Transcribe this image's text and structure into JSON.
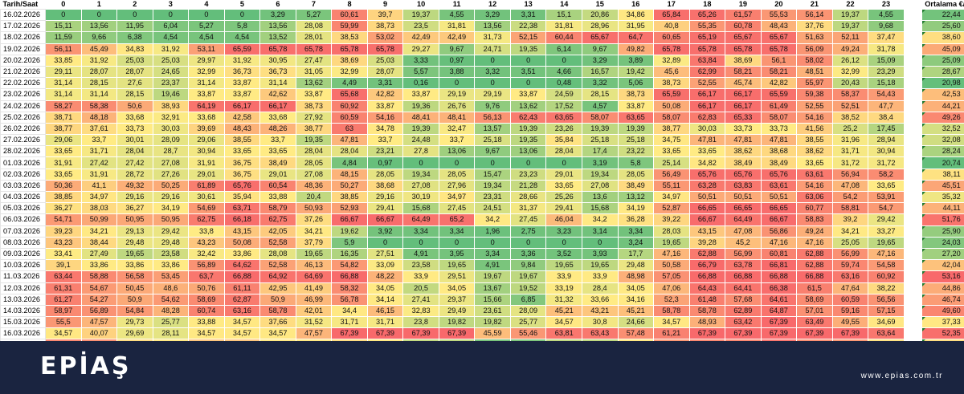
{
  "table": {
    "date_header": "Tarih/Saat",
    "hours": [
      "0",
      "1",
      "2",
      "3",
      "4",
      "5",
      "6",
      "7",
      "8",
      "9",
      "10",
      "11",
      "12",
      "13",
      "14",
      "15",
      "16",
      "17",
      "18",
      "19",
      "20",
      "21",
      "22",
      "23"
    ],
    "avg_header": "Ortalama €/MWh",
    "rows": [
      {
        "date": "16.02.2026",
        "values": [
          "0",
          "0",
          "0",
          "0",
          "0",
          "0",
          "3,29",
          "5,27",
          "60,61",
          "39,7",
          "19,37",
          "4,55",
          "3,29",
          "3,31",
          "15,1",
          "20,86",
          "34,86",
          "65,84",
          "65,26",
          "61,57",
          "55,53",
          "56,14",
          "19,37",
          "4,55"
        ],
        "avg": "22,44"
      },
      {
        "date": "17.02.2026",
        "values": [
          "15,11",
          "13,56",
          "11,95",
          "6,04",
          "5,27",
          "5,8",
          "13,56",
          "28,08",
          "59,99",
          "38,73",
          "23,5",
          "31,81",
          "13,56",
          "22,38",
          "31,81",
          "28,96",
          "31,95",
          "40,8",
          "55,35",
          "60,78",
          "48,43",
          "37,76",
          "19,37",
          "9,68"
        ],
        "avg": "25,60"
      },
      {
        "date": "18.02.2026",
        "values": [
          "11,59",
          "9,66",
          "6,38",
          "4,54",
          "4,54",
          "4,54",
          "13,52",
          "28,01",
          "38,53",
          "53,02",
          "42,49",
          "42,49",
          "31,73",
          "52,15",
          "60,44",
          "65,67",
          "64,7",
          "60,65",
          "65,19",
          "65,67",
          "65,67",
          "51,63",
          "52,11",
          "37,47"
        ],
        "avg": "38,60"
      },
      {
        "date": "19.02.2026",
        "values": [
          "56,11",
          "45,49",
          "34,83",
          "31,92",
          "53,11",
          "65,59",
          "65,78",
          "65,78",
          "65,78",
          "65,78",
          "29,27",
          "9,67",
          "24,71",
          "19,35",
          "6,14",
          "9,67",
          "49,82",
          "65,78",
          "65,78",
          "65,78",
          "65,78",
          "56,09",
          "49,24",
          "31,78"
        ],
        "avg": "45,09"
      },
      {
        "date": "20.02.2026",
        "values": [
          "33,85",
          "31,92",
          "25,03",
          "25,03",
          "29,97",
          "31,92",
          "30,95",
          "27,47",
          "38,69",
          "25,03",
          "3,33",
          "0,97",
          "0",
          "0",
          "0",
          "3,29",
          "3,89",
          "32,89",
          "63,84",
          "38,69",
          "56,1",
          "58,02",
          "26,12",
          "15,09"
        ],
        "avg": "25,09"
      },
      {
        "date": "21.02.2026",
        "values": [
          "29,11",
          "28,07",
          "28,07",
          "24,65",
          "32,99",
          "36,73",
          "36,73",
          "31,05",
          "32,99",
          "28,07",
          "5,57",
          "3,88",
          "3,32",
          "3,51",
          "4,66",
          "16,57",
          "19,42",
          "45,6",
          "62,99",
          "58,21",
          "58,21",
          "48,51",
          "32,99",
          "23,29"
        ],
        "avg": "28,67"
      },
      {
        "date": "22.02.2026",
        "values": [
          "31,14",
          "28,15",
          "27,6",
          "23,37",
          "31,14",
          "33,87",
          "31,14",
          "13,62",
          "4,49",
          "3,31",
          "0,16",
          "0",
          "0",
          "0",
          "0,48",
          "3,32",
          "5,06",
          "38,73",
          "52,55",
          "45,74",
          "42,82",
          "55,97",
          "20,43",
          "15,18"
        ],
        "avg": "20,98"
      },
      {
        "date": "23.02.2026",
        "values": [
          "31,14",
          "31,14",
          "28,15",
          "19,46",
          "33,87",
          "33,87",
          "42,62",
          "33,87",
          "65,68",
          "42,82",
          "33,87",
          "29,19",
          "29,19",
          "33,87",
          "24,59",
          "28,15",
          "38,73",
          "65,59",
          "66,17",
          "66,17",
          "65,59",
          "59,38",
          "58,37",
          "54,43"
        ],
        "avg": "42,53"
      },
      {
        "date": "24.02.2026",
        "values": [
          "58,27",
          "58,38",
          "50,6",
          "38,93",
          "64,19",
          "66,17",
          "66,17",
          "38,73",
          "60,92",
          "33,87",
          "19,36",
          "26,76",
          "9,76",
          "13,62",
          "17,52",
          "4,57",
          "33,87",
          "50,08",
          "66,17",
          "66,17",
          "61,49",
          "52,55",
          "52,51",
          "47,7"
        ],
        "avg": "44,21"
      },
      {
        "date": "25.02.2026",
        "values": [
          "38,71",
          "48,18",
          "33,68",
          "32,91",
          "33,68",
          "42,58",
          "33,68",
          "27,92",
          "60,59",
          "54,16",
          "48,41",
          "48,41",
          "56,13",
          "62,43",
          "63,65",
          "58,07",
          "63,65",
          "58,07",
          "62,83",
          "65,33",
          "58,07",
          "54,16",
          "38,52",
          "38,4"
        ],
        "avg": "49,26"
      },
      {
        "date": "26.02.2026",
        "values": [
          "38,77",
          "37,61",
          "33,73",
          "30,03",
          "39,69",
          "48,43",
          "48,26",
          "38,77",
          "63",
          "34,78",
          "19,39",
          "32,47",
          "13,57",
          "19,39",
          "23,26",
          "19,39",
          "19,39",
          "38,77",
          "30,03",
          "33,73",
          "33,73",
          "41,56",
          "25,2",
          "17,45"
        ],
        "avg": "32,52"
      },
      {
        "date": "27.02.2026",
        "values": [
          "29,06",
          "33,7",
          "30,01",
          "28,09",
          "29,06",
          "38,55",
          "33,7",
          "19,35",
          "47,81",
          "33,7",
          "24,48",
          "33,7",
          "25,18",
          "19,35",
          "35,84",
          "25,18",
          "25,18",
          "34,75",
          "47,81",
          "47,81",
          "47,81",
          "38,55",
          "31,96",
          "28,94"
        ],
        "avg": "32,08"
      },
      {
        "date": "28.02.2026",
        "values": [
          "33,65",
          "31,71",
          "28,04",
          "28,7",
          "30,94",
          "33,65",
          "33,65",
          "28,04",
          "28,04",
          "23,21",
          "27,8",
          "13,06",
          "9,67",
          "13,06",
          "28,04",
          "17,4",
          "23,22",
          "33,65",
          "33,65",
          "38,62",
          "38,68",
          "38,62",
          "31,71",
          "30,94"
        ],
        "avg": "28,24"
      },
      {
        "date": "01.03.2026",
        "values": [
          "31,91",
          "27,42",
          "27,42",
          "27,08",
          "31,91",
          "36,75",
          "38,49",
          "28,05",
          "4,84",
          "0,97",
          "0",
          "0",
          "0",
          "0",
          "0",
          "3,19",
          "5,8",
          "25,14",
          "34,82",
          "38,49",
          "38,49",
          "33,65",
          "31,72",
          "31,72"
        ],
        "avg": "20,74"
      },
      {
        "date": "02.03.2026",
        "values": [
          "33,65",
          "31,91",
          "28,72",
          "27,26",
          "29,01",
          "36,75",
          "29,01",
          "27,08",
          "48,15",
          "28,05",
          "19,34",
          "28,05",
          "15,47",
          "23,23",
          "29,01",
          "19,34",
          "28,05",
          "56,49",
          "65,76",
          "65,76",
          "65,76",
          "63,61",
          "56,94",
          "58,2"
        ],
        "avg": "38,11"
      },
      {
        "date": "03.03.2026",
        "values": [
          "50,36",
          "41,1",
          "49,32",
          "50,25",
          "61,89",
          "65,76",
          "60,54",
          "48,36",
          "50,27",
          "38,68",
          "27,08",
          "27,96",
          "19,34",
          "21,28",
          "33,65",
          "27,08",
          "38,49",
          "55,11",
          "63,28",
          "63,83",
          "63,61",
          "54,16",
          "47,08",
          "33,65"
        ],
        "avg": "45,51"
      },
      {
        "date": "04.03.2026",
        "values": [
          "38,85",
          "34,97",
          "29,16",
          "29,16",
          "30,61",
          "35,94",
          "33,88",
          "20,4",
          "38,85",
          "29,16",
          "30,19",
          "34,97",
          "23,31",
          "28,66",
          "25,26",
          "13,6",
          "13,12",
          "34,97",
          "50,51",
          "50,51",
          "50,51",
          "63,06",
          "54,2",
          "53,91"
        ],
        "avg": "35,32"
      },
      {
        "date": "05.03.2026",
        "values": [
          "36,27",
          "38,03",
          "36,27",
          "34,19",
          "54,69",
          "63,71",
          "58,79",
          "50,93",
          "52,93",
          "29,41",
          "15,68",
          "27,45",
          "24,51",
          "31,37",
          "29,41",
          "15,68",
          "34,19",
          "52,87",
          "66,65",
          "66,65",
          "66,65",
          "60,77",
          "58,81",
          "54,7"
        ],
        "avg": "44,11"
      },
      {
        "date": "06.03.2026",
        "values": [
          "54,71",
          "50,99",
          "50,95",
          "50,95",
          "62,75",
          "66,18",
          "62,75",
          "37,26",
          "66,67",
          "66,67",
          "64,49",
          "65,2",
          "34,2",
          "27,45",
          "46,04",
          "34,2",
          "36,28",
          "39,22",
          "66,67",
          "64,49",
          "66,67",
          "58,83",
          "39,2",
          "29,42"
        ],
        "avg": "51,76"
      },
      {
        "date": "07.03.2026",
        "values": [
          "39,23",
          "34,21",
          "29,13",
          "29,42",
          "33,8",
          "43,15",
          "42,05",
          "34,21",
          "19,62",
          "3,92",
          "3,34",
          "3,34",
          "1,96",
          "2,75",
          "3,23",
          "3,14",
          "3,34",
          "28,03",
          "43,15",
          "47,08",
          "56,86",
          "49,24",
          "34,21",
          "33,27"
        ],
        "avg": "25,90"
      },
      {
        "date": "08.03.2026",
        "values": [
          "43,23",
          "38,44",
          "29,48",
          "29,48",
          "43,23",
          "50,08",
          "52,58",
          "37,79",
          "5,9",
          "0",
          "0",
          "0",
          "0",
          "0",
          "0",
          "0",
          "3,24",
          "19,65",
          "39,28",
          "45,2",
          "47,16",
          "47,16",
          "25,05",
          "19,65"
        ],
        "avg": "24,03"
      },
      {
        "date": "09.03.2026",
        "values": [
          "33,41",
          "27,49",
          "19,65",
          "23,58",
          "32,42",
          "33,86",
          "28,08",
          "19,65",
          "16,35",
          "27,51",
          "4,91",
          "3,95",
          "3,34",
          "3,36",
          "3,52",
          "3,93",
          "17,7",
          "47,16",
          "62,88",
          "56,99",
          "60,81",
          "62,88",
          "56,99",
          "47,16"
        ],
        "avg": "27,20"
      },
      {
        "date": "10.03.2026",
        "values": [
          "39,1",
          "33,86",
          "33,86",
          "33,86",
          "56,89",
          "64,62",
          "52,58",
          "46,13",
          "54,82",
          "33,09",
          "23,58",
          "19,65",
          "4,91",
          "9,84",
          "19,65",
          "19,65",
          "29,48",
          "50,58",
          "66,79",
          "63,78",
          "66,81",
          "62,88",
          "59,74",
          "54,58"
        ],
        "avg": "42,04"
      },
      {
        "date": "11.03.2026",
        "values": [
          "63,44",
          "58,88",
          "56,58",
          "53,45",
          "63,7",
          "66,88",
          "64,92",
          "64,69",
          "66,88",
          "48,22",
          "33,9",
          "29,51",
          "19,67",
          "19,67",
          "33,9",
          "33,9",
          "48,98",
          "57,05",
          "66,88",
          "66,88",
          "66,88",
          "66,88",
          "63,16",
          "60,92"
        ],
        "avg": "53,16"
      },
      {
        "date": "12.03.2026",
        "values": [
          "61,31",
          "54,67",
          "50,45",
          "48,6",
          "50,76",
          "61,11",
          "42,95",
          "41,49",
          "58,32",
          "34,05",
          "20,5",
          "34,05",
          "13,67",
          "19,52",
          "33,19",
          "28,4",
          "34,05",
          "47,06",
          "64,43",
          "64,41",
          "66,38",
          "61,5",
          "47,64",
          "38,22"
        ],
        "avg": "44,86"
      },
      {
        "date": "13.03.2026",
        "values": [
          "61,27",
          "54,27",
          "50,9",
          "54,62",
          "58,69",
          "62,87",
          "50,9",
          "46,99",
          "56,78",
          "34,14",
          "27,41",
          "29,37",
          "15,66",
          "6,85",
          "31,32",
          "33,66",
          "34,16",
          "52,3",
          "61,48",
          "57,68",
          "64,61",
          "58,69",
          "60,59",
          "56,56"
        ],
        "avg": "46,74"
      },
      {
        "date": "14.03.2026",
        "values": [
          "58,97",
          "56,89",
          "54,84",
          "48,28",
          "60,74",
          "63,16",
          "58,78",
          "42,01",
          "34,4",
          "46,15",
          "32,83",
          "29,49",
          "23,61",
          "28,09",
          "45,21",
          "43,21",
          "45,21",
          "58,78",
          "58,78",
          "62,89",
          "64,87",
          "57,01",
          "59,16",
          "57,15"
        ],
        "avg": "49,60"
      },
      {
        "date": "15.03.2026",
        "values": [
          "55,5",
          "47,57",
          "29,73",
          "25,77",
          "33,88",
          "34,57",
          "37,66",
          "31,52",
          "31,71",
          "31,71",
          "23,8",
          "19,82",
          "19,82",
          "25,77",
          "34,57",
          "30,8",
          "24,66",
          "34,57",
          "48,93",
          "63,42",
          "67,39",
          "63,49",
          "49,55",
          "34,69"
        ],
        "avg": "37,33"
      },
      {
        "date": "16.03.2026",
        "values": [
          "34,57",
          "40,07",
          "29,69",
          "28,11",
          "34,57",
          "34,57",
          "34,57",
          "47,57",
          "67,39",
          "67,39",
          "67,39",
          "67,39",
          "45,59",
          "55,46",
          "63,81",
          "63,43",
          "57,48",
          "61,21",
          "67,39",
          "67,39",
          "67,39",
          "67,39",
          "67,39",
          "63,64"
        ],
        "avg": "52,35"
      },
      {
        "date": "17.03.2026",
        "values": [
          "59,24",
          "57,48",
          "37,5",
          "34,57",
          "43,61",
          "43,61",
          "34,57",
          "34,57",
          "37,5",
          "34,57",
          "20,81",
          "19,82",
          "4,78",
          "5,95",
          "19,82",
          "19,82",
          "34,57",
          "55,29",
          "59,24",
          "59,46",
          "63,96",
          "57,48",
          "55,18",
          "36,35"
        ],
        "avg": "38,74"
      }
    ]
  },
  "footer": {
    "logo": "EPİAŞ",
    "website": "www.epias.com.tr"
  }
}
